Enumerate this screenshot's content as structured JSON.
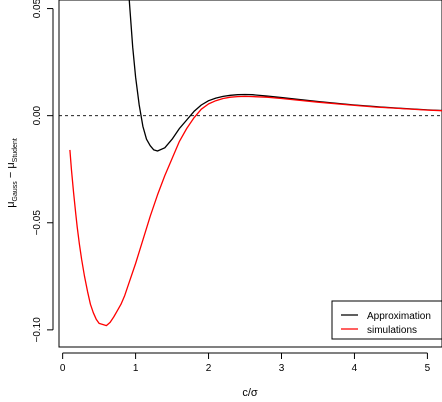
{
  "chart_data": {
    "type": "line",
    "title": "",
    "xlabel": "c/σ",
    "ylabel": {
      "parts": [
        "μ",
        "Gauss",
        " − μ",
        "Student"
      ]
    },
    "xlim": [
      -0.05,
      5.2
    ],
    "ylim": [
      -0.108,
      0.054
    ],
    "x_ticks": [
      0,
      1,
      2,
      3,
      4,
      5
    ],
    "x_tick_labels": [
      "0",
      "1",
      "2",
      "3",
      "4",
      "5"
    ],
    "y_ticks": [
      -0.1,
      -0.05,
      0.0,
      0.05
    ],
    "y_tick_labels": [
      "−0.10",
      "−0.05",
      "0.00",
      "0.05"
    ],
    "reference_line": {
      "y": 0,
      "style": "dashed",
      "color": "#000000"
    },
    "grid": false,
    "legend": {
      "placement": "bottom-right",
      "entries": [
        {
          "label": "Approximation",
          "color": "#000000"
        },
        {
          "label": "simulations",
          "color": "#ff0000"
        }
      ]
    },
    "series": [
      {
        "name": "Approximation",
        "color": "#000000",
        "points": [
          [
            0.9,
            0.06
          ],
          [
            0.93,
            0.046
          ],
          [
            0.96,
            0.032
          ],
          [
            1.0,
            0.018
          ],
          [
            1.05,
            0.005
          ],
          [
            1.1,
            -0.005
          ],
          [
            1.15,
            -0.011
          ],
          [
            1.2,
            -0.014
          ],
          [
            1.25,
            -0.016
          ],
          [
            1.3,
            -0.0165
          ],
          [
            1.4,
            -0.015
          ],
          [
            1.5,
            -0.011
          ],
          [
            1.6,
            -0.006
          ],
          [
            1.7,
            -0.002
          ],
          [
            1.8,
            0.002
          ],
          [
            1.9,
            0.005
          ],
          [
            2.0,
            0.007
          ],
          [
            2.1,
            0.0082
          ],
          [
            2.2,
            0.009
          ],
          [
            2.3,
            0.0095
          ],
          [
            2.4,
            0.0098
          ],
          [
            2.5,
            0.0099
          ],
          [
            2.6,
            0.0098
          ],
          [
            2.8,
            0.0092
          ],
          [
            3.0,
            0.0085
          ],
          [
            3.2,
            0.0077
          ],
          [
            3.5,
            0.0066
          ],
          [
            3.8,
            0.0056
          ],
          [
            4.0,
            0.005
          ],
          [
            4.3,
            0.0042
          ],
          [
            4.6,
            0.0035
          ],
          [
            5.0,
            0.0027
          ],
          [
            5.2,
            0.0024
          ]
        ]
      },
      {
        "name": "simulations",
        "color": "#ff0000",
        "points": [
          [
            0.1,
            -0.016
          ],
          [
            0.12,
            -0.025
          ],
          [
            0.15,
            -0.036
          ],
          [
            0.18,
            -0.046
          ],
          [
            0.2,
            -0.052
          ],
          [
            0.23,
            -0.06
          ],
          [
            0.26,
            -0.067
          ],
          [
            0.3,
            -0.075
          ],
          [
            0.34,
            -0.082
          ],
          [
            0.38,
            -0.088
          ],
          [
            0.42,
            -0.092
          ],
          [
            0.46,
            -0.095
          ],
          [
            0.5,
            -0.097
          ],
          [
            0.55,
            -0.0975
          ],
          [
            0.6,
            -0.098
          ],
          [
            0.65,
            -0.0965
          ],
          [
            0.7,
            -0.094
          ],
          [
            0.75,
            -0.091
          ],
          [
            0.8,
            -0.088
          ],
          [
            0.85,
            -0.084
          ],
          [
            0.9,
            -0.079
          ],
          [
            1.0,
            -0.069
          ],
          [
            1.1,
            -0.058
          ],
          [
            1.2,
            -0.047
          ],
          [
            1.3,
            -0.037
          ],
          [
            1.4,
            -0.028
          ],
          [
            1.5,
            -0.02
          ],
          [
            1.6,
            -0.012
          ],
          [
            1.7,
            -0.006
          ],
          [
            1.8,
            -0.001
          ],
          [
            1.9,
            0.003
          ],
          [
            2.0,
            0.0055
          ],
          [
            2.1,
            0.007
          ],
          [
            2.2,
            0.008
          ],
          [
            2.3,
            0.0086
          ],
          [
            2.4,
            0.0089
          ],
          [
            2.5,
            0.009
          ],
          [
            2.6,
            0.0089
          ],
          [
            2.8,
            0.0086
          ],
          [
            3.0,
            0.008
          ],
          [
            3.2,
            0.0073
          ],
          [
            3.5,
            0.0063
          ],
          [
            3.8,
            0.0054
          ],
          [
            4.0,
            0.0048
          ],
          [
            4.3,
            0.004
          ],
          [
            4.6,
            0.0034
          ],
          [
            5.0,
            0.0026
          ],
          [
            5.2,
            0.0023
          ]
        ]
      }
    ]
  }
}
